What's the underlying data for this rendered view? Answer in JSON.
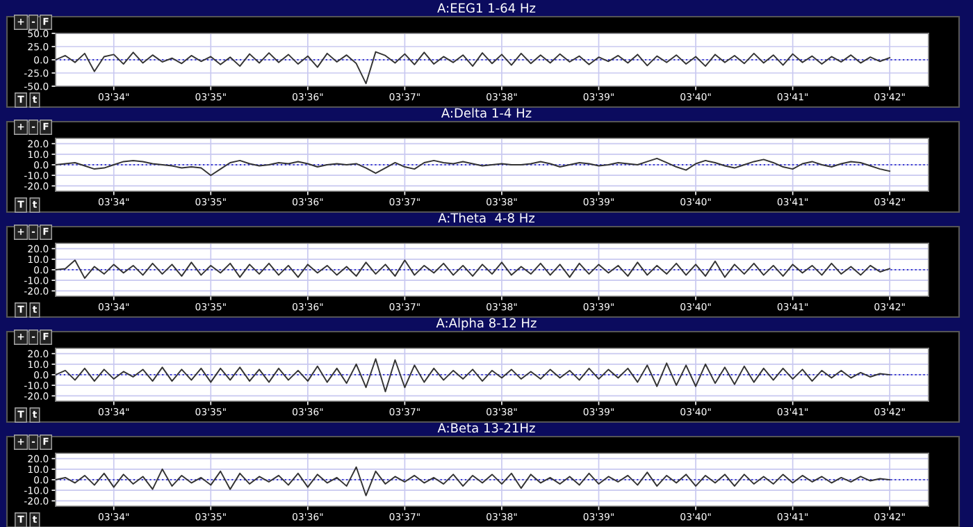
{
  "chart_data": [
    {
      "type": "line",
      "title": "A:EEG1 1-64 Hz",
      "annotations": [
        "+",
        "-",
        "F",
        "T",
        "t"
      ],
      "grid": true,
      "ylim": [
        -50,
        50
      ],
      "yticks": [
        {
          "value": 50,
          "label": "50.0"
        },
        {
          "value": 25,
          "label": "25.0"
        },
        {
          "value": 0,
          "label": "0.0"
        },
        {
          "value": -25,
          "label": "-25.0"
        },
        {
          "value": -50,
          "label": "-50.0"
        }
      ],
      "ref_lines": [
        {
          "axis": "y",
          "value": 0,
          "color": "#3a3ad0",
          "line_style": "dotted"
        }
      ],
      "categories": [
        null,
        null,
        null,
        null,
        null,
        null,
        "03'34\"",
        null,
        null,
        null,
        null,
        null,
        null,
        null,
        null,
        null,
        "03'35\"",
        null,
        null,
        null,
        null,
        null,
        null,
        null,
        null,
        null,
        "03'36\"",
        null,
        null,
        null,
        null,
        null,
        null,
        null,
        null,
        null,
        "03'37\"",
        null,
        null,
        null,
        null,
        null,
        null,
        null,
        null,
        null,
        "03'38\"",
        null,
        null,
        null,
        null,
        null,
        null,
        null,
        null,
        null,
        "03'39\"",
        null,
        null,
        null,
        null,
        null,
        null,
        null,
        null,
        null,
        "03'40\"",
        null,
        null,
        null,
        null,
        null,
        null,
        null,
        null,
        null,
        "03'41\"",
        null,
        null,
        null,
        null,
        null,
        null,
        null,
        null,
        null,
        "03'42\""
      ],
      "series": [
        {
          "color": "#333333",
          "values": [
            0,
            8,
            -5,
            12,
            -22,
            6,
            10,
            -8,
            14,
            -6,
            9,
            -4,
            3,
            -7,
            8,
            -3,
            6,
            -9,
            5,
            -12,
            11,
            -6,
            13,
            -5,
            10,
            -8,
            7,
            -14,
            12,
            -4,
            9,
            -7,
            -45,
            15,
            8,
            -6,
            11,
            -9,
            14,
            -8,
            6,
            -5,
            9,
            -12,
            13,
            -7,
            10,
            -10,
            12,
            -7,
            9,
            -6,
            11,
            -4,
            7,
            -9,
            5,
            -3,
            8,
            -6,
            10,
            -11,
            7,
            -5,
            9,
            -8,
            6,
            -12,
            10,
            -5,
            8,
            -7,
            12,
            -6,
            9,
            -10,
            11,
            -5,
            7,
            -8,
            6,
            -4,
            9,
            -6,
            5,
            -3,
            4
          ]
        }
      ]
    },
    {
      "type": "line",
      "title": "A:Delta 1-4 Hz",
      "annotations": [
        "+",
        "-",
        "F",
        "T",
        "t"
      ],
      "grid": true,
      "ylim": [
        -25,
        25
      ],
      "yticks": [
        {
          "value": 20,
          "label": "20.0"
        },
        {
          "value": 10,
          "label": "10.0"
        },
        {
          "value": 0,
          "label": "0.0"
        },
        {
          "value": -10,
          "label": "-10.0"
        },
        {
          "value": -20,
          "label": "-20.0"
        }
      ],
      "ref_lines": [
        {
          "axis": "y",
          "value": 0,
          "color": "#3a3ad0",
          "line_style": "dotted"
        }
      ],
      "categories": [
        null,
        null,
        null,
        null,
        null,
        null,
        "03'34\"",
        null,
        null,
        null,
        null,
        null,
        null,
        null,
        null,
        null,
        "03'35\"",
        null,
        null,
        null,
        null,
        null,
        null,
        null,
        null,
        null,
        "03'36\"",
        null,
        null,
        null,
        null,
        null,
        null,
        null,
        null,
        null,
        "03'37\"",
        null,
        null,
        null,
        null,
        null,
        null,
        null,
        null,
        null,
        "03'38\"",
        null,
        null,
        null,
        null,
        null,
        null,
        null,
        null,
        null,
        "03'39\"",
        null,
        null,
        null,
        null,
        null,
        null,
        null,
        null,
        null,
        "03'40\"",
        null,
        null,
        null,
        null,
        null,
        null,
        null,
        null,
        null,
        "03'41\"",
        null,
        null,
        null,
        null,
        null,
        null,
        null,
        null,
        null,
        "03'42\""
      ],
      "series": [
        {
          "color": "#333333",
          "values": [
            0,
            1,
            2,
            -1,
            -4,
            -3,
            0,
            3,
            4,
            3,
            1,
            0,
            -1,
            -3,
            -2,
            -3,
            -10,
            -4,
            2,
            4,
            1,
            -1,
            0,
            2,
            1,
            3,
            1,
            -2,
            0,
            1,
            0,
            1,
            -3,
            -8,
            -3,
            2,
            -2,
            -4,
            2,
            4,
            2,
            1,
            3,
            1,
            -1,
            0,
            1,
            0,
            0,
            1,
            3,
            1,
            -2,
            0,
            2,
            1,
            -1,
            0,
            2,
            1,
            0,
            3,
            6,
            2,
            -2,
            -5,
            1,
            4,
            2,
            -1,
            -3,
            0,
            3,
            5,
            2,
            -2,
            -4,
            1,
            3,
            0,
            -2,
            1,
            3,
            2,
            -1,
            -4,
            -6
          ]
        }
      ]
    },
    {
      "type": "line",
      "title": "A:Theta  4-8 Hz",
      "annotations": [
        "+",
        "-",
        "F",
        "T",
        "t"
      ],
      "grid": true,
      "ylim": [
        -25,
        25
      ],
      "yticks": [
        {
          "value": 20,
          "label": "20.0"
        },
        {
          "value": 10,
          "label": "10.0"
        },
        {
          "value": 0,
          "label": "0.0"
        },
        {
          "value": -10,
          "label": "-10.0"
        },
        {
          "value": -20,
          "label": "-20.0"
        }
      ],
      "ref_lines": [
        {
          "axis": "y",
          "value": 0,
          "color": "#3a3ad0",
          "line_style": "dotted"
        }
      ],
      "categories": [
        null,
        null,
        null,
        null,
        null,
        null,
        "03'34\"",
        null,
        null,
        null,
        null,
        null,
        null,
        null,
        null,
        null,
        "03'35\"",
        null,
        null,
        null,
        null,
        null,
        null,
        null,
        null,
        null,
        "03'36\"",
        null,
        null,
        null,
        null,
        null,
        null,
        null,
        null,
        null,
        "03'37\"",
        null,
        null,
        null,
        null,
        null,
        null,
        null,
        null,
        null,
        "03'38\"",
        null,
        null,
        null,
        null,
        null,
        null,
        null,
        null,
        null,
        "03'39\"",
        null,
        null,
        null,
        null,
        null,
        null,
        null,
        null,
        null,
        "03'40\"",
        null,
        null,
        null,
        null,
        null,
        null,
        null,
        null,
        null,
        "03'41\"",
        null,
        null,
        null,
        null,
        null,
        null,
        null,
        null,
        null,
        "03'42\""
      ],
      "series": [
        {
          "color": "#333333",
          "values": [
            0,
            1,
            9,
            -8,
            3,
            -4,
            5,
            -3,
            4,
            -5,
            6,
            -4,
            5,
            -6,
            7,
            -5,
            4,
            -3,
            6,
            -7,
            5,
            -4,
            6,
            -5,
            4,
            -7,
            5,
            -3,
            4,
            -5,
            3,
            -6,
            7,
            -4,
            5,
            -6,
            9,
            -5,
            4,
            -3,
            6,
            -5,
            4,
            -6,
            5,
            -4,
            7,
            -5,
            3,
            -4,
            6,
            -5,
            5,
            -7,
            6,
            -4,
            5,
            -3,
            4,
            -6,
            7,
            -5,
            4,
            -4,
            6,
            -5,
            5,
            -6,
            8,
            -7,
            5,
            -4,
            6,
            -5,
            4,
            -6,
            5,
            -3,
            4,
            -5,
            6,
            -4,
            3,
            -5,
            4,
            -2,
            1
          ]
        }
      ]
    },
    {
      "type": "line",
      "title": "A:Alpha 8-12 Hz",
      "annotations": [
        "+",
        "-",
        "F",
        "T",
        "t"
      ],
      "grid": true,
      "ylim": [
        -25,
        25
      ],
      "yticks": [
        {
          "value": 20,
          "label": "20.0"
        },
        {
          "value": 10,
          "label": "10.0"
        },
        {
          "value": 0,
          "label": "0.0"
        },
        {
          "value": -10,
          "label": "-10.0"
        },
        {
          "value": -20,
          "label": "-20.0"
        }
      ],
      "ref_lines": [
        {
          "axis": "y",
          "value": 0,
          "color": "#3a3ad0",
          "line_style": "dotted"
        }
      ],
      "categories": [
        null,
        null,
        null,
        null,
        null,
        null,
        "03'34\"",
        null,
        null,
        null,
        null,
        null,
        null,
        null,
        null,
        null,
        "03'35\"",
        null,
        null,
        null,
        null,
        null,
        null,
        null,
        null,
        null,
        "03'36\"",
        null,
        null,
        null,
        null,
        null,
        null,
        null,
        null,
        null,
        "03'37\"",
        null,
        null,
        null,
        null,
        null,
        null,
        null,
        null,
        null,
        "03'38\"",
        null,
        null,
        null,
        null,
        null,
        null,
        null,
        null,
        null,
        "03'39\"",
        null,
        null,
        null,
        null,
        null,
        null,
        null,
        null,
        null,
        "03'40\"",
        null,
        null,
        null,
        null,
        null,
        null,
        null,
        null,
        null,
        "03'41\"",
        null,
        null,
        null,
        null,
        null,
        null,
        null,
        null,
        null,
        "03'42\""
      ],
      "series": [
        {
          "color": "#333333",
          "values": [
            0,
            4,
            -5,
            6,
            -6,
            5,
            -4,
            3,
            -2,
            5,
            -6,
            7,
            -6,
            5,
            -5,
            6,
            -7,
            6,
            -5,
            7,
            -6,
            5,
            -7,
            6,
            -5,
            4,
            -6,
            8,
            -7,
            6,
            -8,
            10,
            -12,
            15,
            -16,
            14,
            -12,
            9,
            -7,
            6,
            -5,
            4,
            -4,
            5,
            -6,
            4,
            -3,
            5,
            -4,
            3,
            -4,
            5,
            -3,
            4,
            -5,
            6,
            -4,
            5,
            -3,
            6,
            -7,
            9,
            -11,
            11,
            -10,
            9,
            -11,
            10,
            -8,
            7,
            -9,
            8,
            -7,
            6,
            -5,
            6,
            -4,
            5,
            -6,
            4,
            -3,
            4,
            -3,
            2,
            -2,
            1,
            0
          ]
        }
      ]
    },
    {
      "type": "line",
      "title": "A:Beta 13-21Hz",
      "annotations": [
        "+",
        "-",
        "F",
        "T",
        "t"
      ],
      "grid": true,
      "ylim": [
        -25,
        25
      ],
      "yticks": [
        {
          "value": 20,
          "label": "20.0"
        },
        {
          "value": 10,
          "label": "10.0"
        },
        {
          "value": 0,
          "label": "0.0"
        },
        {
          "value": -10,
          "label": "-10.0"
        },
        {
          "value": -20,
          "label": "-20.0"
        }
      ],
      "ref_lines": [
        {
          "axis": "y",
          "value": 0,
          "color": "#3a3ad0",
          "line_style": "dotted"
        }
      ],
      "categories": [
        null,
        null,
        null,
        null,
        null,
        null,
        "03'34\"",
        null,
        null,
        null,
        null,
        null,
        null,
        null,
        null,
        null,
        "03'35\"",
        null,
        null,
        null,
        null,
        null,
        null,
        null,
        null,
        null,
        "03'36\"",
        null,
        null,
        null,
        null,
        null,
        null,
        null,
        null,
        null,
        "03'37\"",
        null,
        null,
        null,
        null,
        null,
        null,
        null,
        null,
        null,
        "03'38\"",
        null,
        null,
        null,
        null,
        null,
        null,
        null,
        null,
        null,
        "03'39\"",
        null,
        null,
        null,
        null,
        null,
        null,
        null,
        null,
        null,
        "03'40\"",
        null,
        null,
        null,
        null,
        null,
        null,
        null,
        null,
        null,
        "03'41\"",
        null,
        null,
        null,
        null,
        null,
        null,
        null,
        null,
        null,
        "03'42\""
      ],
      "series": [
        {
          "color": "#333333",
          "values": [
            0,
            2,
            -3,
            4,
            -5,
            6,
            -7,
            5,
            -4,
            3,
            -9,
            10,
            -6,
            4,
            -3,
            2,
            -5,
            8,
            -9,
            6,
            -4,
            3,
            -2,
            4,
            -5,
            6,
            -7,
            5,
            -3,
            2,
            -6,
            12,
            -15,
            8,
            -4,
            3,
            -2,
            4,
            -3,
            2,
            -4,
            5,
            -6,
            4,
            -3,
            5,
            -4,
            6,
            -8,
            5,
            -3,
            2,
            -4,
            3,
            -5,
            6,
            -4,
            3,
            -2,
            4,
            -5,
            7,
            -6,
            4,
            -3,
            5,
            -6,
            4,
            -3,
            5,
            -6,
            5,
            -4,
            3,
            -4,
            5,
            -3,
            4,
            -2,
            3,
            -3,
            2,
            -2,
            3,
            -1,
            1,
            0
          ]
        }
      ]
    }
  ]
}
